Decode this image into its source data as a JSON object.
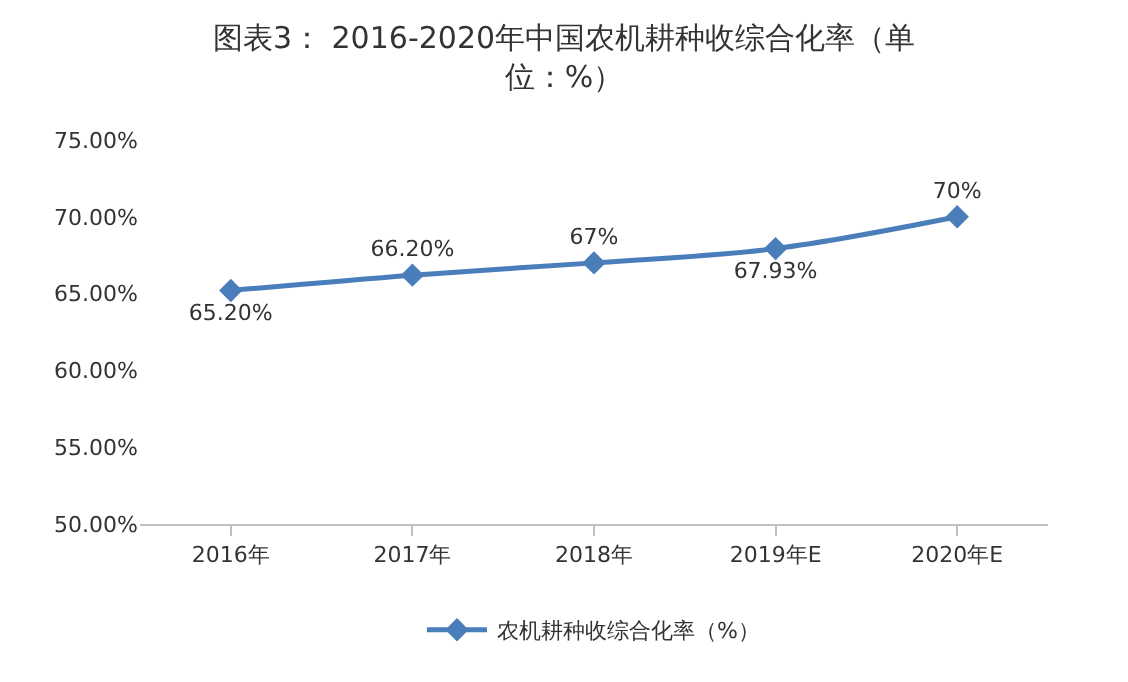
{
  "chart_data": {
    "type": "line",
    "title": "图表3： 2016-2020年中国农机耕种收综合化率（单位：%）",
    "categories": [
      "2016年",
      "2017年",
      "2018年",
      "2019年E",
      "2020年E"
    ],
    "series": [
      {
        "name": "农机耕种收综合化率（%）",
        "color": "#4a7ebb",
        "values": [
          65.2,
          66.2,
          67,
          67.93,
          70
        ],
        "value_labels": [
          "65.20%",
          "66.20%",
          "67%",
          "67.93%",
          "70%"
        ]
      }
    ],
    "ylim": [
      50,
      75
    ],
    "yticks": [
      {
        "value": 50,
        "label": "50.00%"
      },
      {
        "value": 55,
        "label": "55.00%"
      },
      {
        "value": 60,
        "label": "60.00%"
      },
      {
        "value": 65,
        "label": "65.00%"
      },
      {
        "value": 70,
        "label": "70.00%"
      },
      {
        "value": 75,
        "label": "75.00%"
      }
    ],
    "grid": false,
    "legend": "bottom",
    "marker": "diamond",
    "line_style": "solid"
  }
}
